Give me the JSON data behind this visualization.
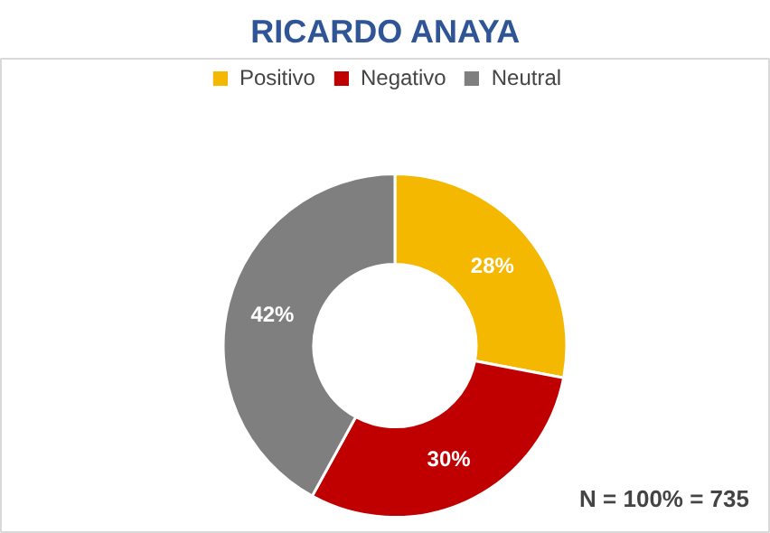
{
  "chart_data": {
    "type": "donut",
    "title": "RICARDO ANAYA",
    "categories": [
      "Positivo",
      "Negativo",
      "Neutral"
    ],
    "values": [
      28,
      30,
      42
    ],
    "colors": [
      "#f5b800",
      "#c00000",
      "#7f7f7f"
    ],
    "value_labels": [
      "28%",
      "30%",
      "42%"
    ],
    "legend": "top",
    "annotations": [
      "N = 100% = 735"
    ]
  }
}
